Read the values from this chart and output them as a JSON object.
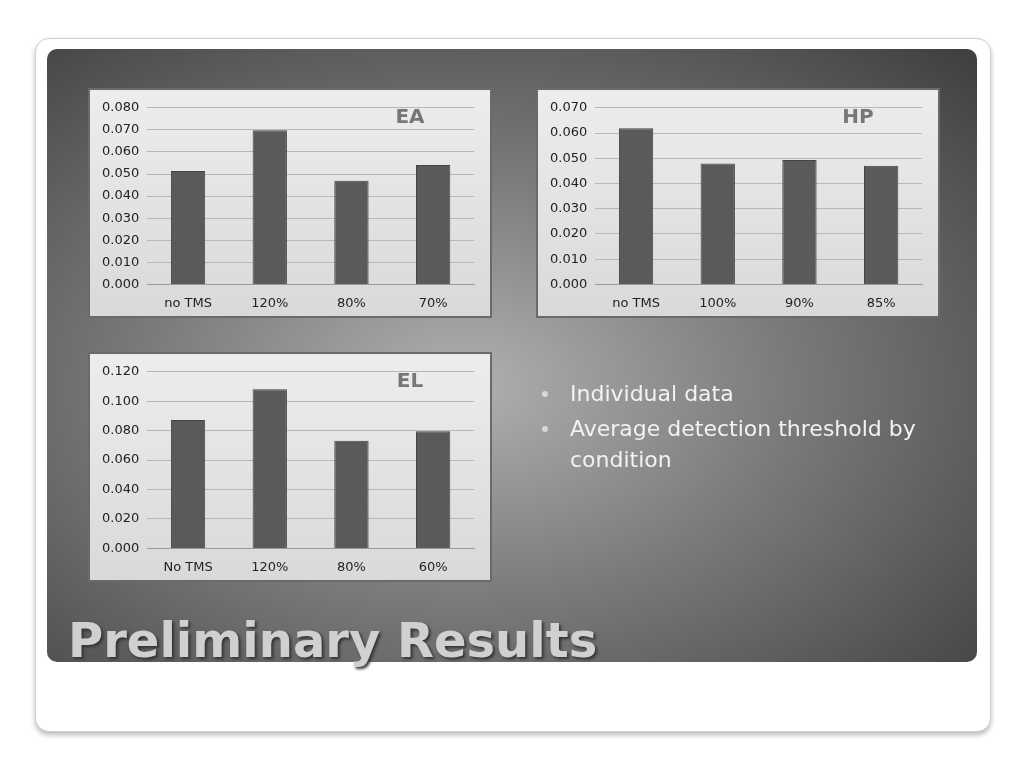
{
  "chart_data": [
    {
      "type": "bar",
      "title": "EA",
      "categories": [
        "no TMS",
        "120%",
        "80%",
        "70%"
      ],
      "values": [
        0.0514,
        0.0698,
        0.0469,
        0.0541
      ],
      "color": "#5a5a5a",
      "ylim": [
        0,
        0.08
      ],
      "yticks": [
        {
          "value": 0,
          "label": "0.000"
        },
        {
          "value": 0.01,
          "label": "0.010"
        },
        {
          "value": 0.02,
          "label": "0.020"
        },
        {
          "value": 0.03,
          "label": "0.030"
        },
        {
          "value": 0.04,
          "label": "0.040"
        },
        {
          "value": 0.05,
          "label": "0.050"
        },
        {
          "value": 0.06,
          "label": "0.060"
        },
        {
          "value": 0.07,
          "label": "0.070"
        },
        {
          "value": 0.08,
          "label": "0.080"
        }
      ],
      "grid": "y"
    },
    {
      "type": "bar",
      "title": "HP",
      "categories": [
        "no TMS",
        "100%",
        "90%",
        "85%"
      ],
      "values": [
        0.0619,
        0.0479,
        0.0493,
        0.047
      ],
      "color": "#5a5a5a",
      "ylim": [
        0,
        0.07
      ],
      "yticks": [
        {
          "value": 0,
          "label": "0.000"
        },
        {
          "value": 0.01,
          "label": "0.010"
        },
        {
          "value": 0.02,
          "label": "0.020"
        },
        {
          "value": 0.03,
          "label": "0.030"
        },
        {
          "value": 0.04,
          "label": "0.040"
        },
        {
          "value": 0.05,
          "label": "0.050"
        },
        {
          "value": 0.06,
          "label": "0.060"
        },
        {
          "value": 0.07,
          "label": "0.070"
        }
      ],
      "grid": "y"
    },
    {
      "type": "bar",
      "title": "EL",
      "categories": [
        "No TMS",
        "120%",
        "80%",
        "60%"
      ],
      "values": [
        0.0872,
        0.1081,
        0.0731,
        0.0796
      ],
      "color": "#5a5a5a",
      "ylim": [
        0,
        0.12
      ],
      "yticks": [
        {
          "value": 0,
          "label": "0.000"
        },
        {
          "value": 0.02,
          "label": "0.020"
        },
        {
          "value": 0.04,
          "label": "0.040"
        },
        {
          "value": 0.06,
          "label": "0.060"
        },
        {
          "value": 0.08,
          "label": "0.080"
        },
        {
          "value": 0.1,
          "label": "0.100"
        },
        {
          "value": 0.12,
          "label": "0.120"
        }
      ],
      "grid": "y"
    },
    {
      "type": "other",
      "title": "Preliminary Results",
      "annotations": [
        "Individual data",
        "Average detection threshold by condition"
      ]
    }
  ]
}
